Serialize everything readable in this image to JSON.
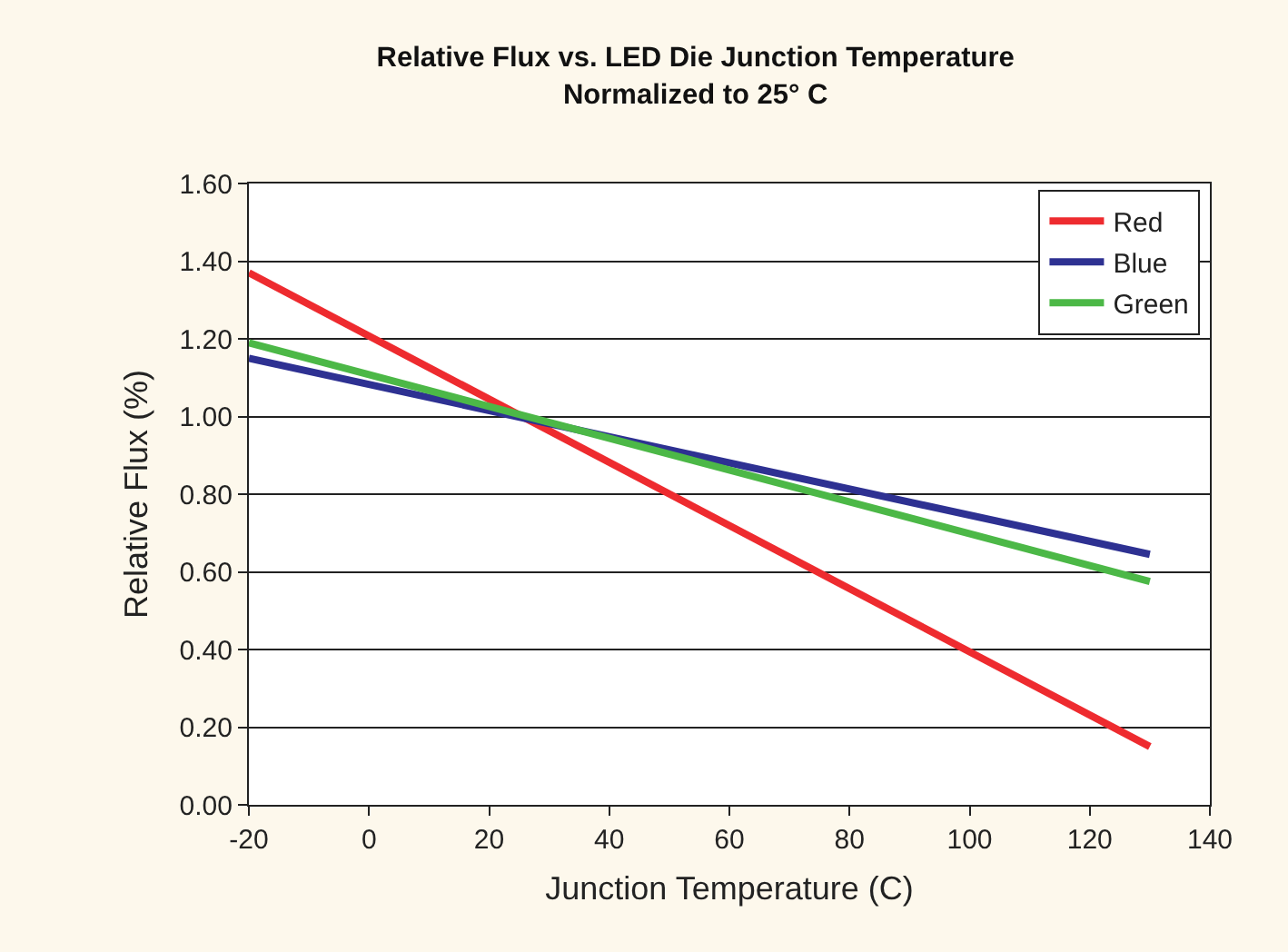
{
  "chart_data": {
    "type": "line",
    "title": "Relative Flux vs. LED Die Junction Temperature",
    "subtitle": "Normalized to 25° C",
    "xlabel": "Junction Temperature (C)",
    "ylabel": "Relative Flux (%)",
    "series": [
      {
        "name": "Red",
        "color": "#ee2b2f",
        "values": [
          1.37,
          0.15
        ]
      },
      {
        "name": "Blue",
        "color": "#2e3192",
        "values": [
          1.15,
          0.645
        ]
      },
      {
        "name": "Green",
        "color": "#4cb847",
        "values": [
          1.19,
          0.575
        ]
      }
    ],
    "x": [
      -20,
      130
    ],
    "xlim": [
      -20,
      140
    ],
    "xticks": [
      -20,
      0,
      20,
      40,
      60,
      80,
      100,
      120,
      140
    ],
    "ylim": [
      0,
      1.6
    ],
    "yticks": [
      {
        "value": 0,
        "label": "0.00"
      },
      {
        "value": 0.2,
        "label": "0.20"
      },
      {
        "value": 0.4,
        "label": "0.40"
      },
      {
        "value": 0.6,
        "label": "0.60"
      },
      {
        "value": 0.8,
        "label": "0.80"
      },
      {
        "value": 1,
        "label": "1.00"
      },
      {
        "value": 1.2,
        "label": "1.20"
      },
      {
        "value": 1.4,
        "label": "1.40"
      },
      {
        "value": 1.6,
        "label": "1.60"
      }
    ],
    "grid": "y",
    "legend": "top right",
    "marker": "none",
    "line_style": "solid"
  }
}
